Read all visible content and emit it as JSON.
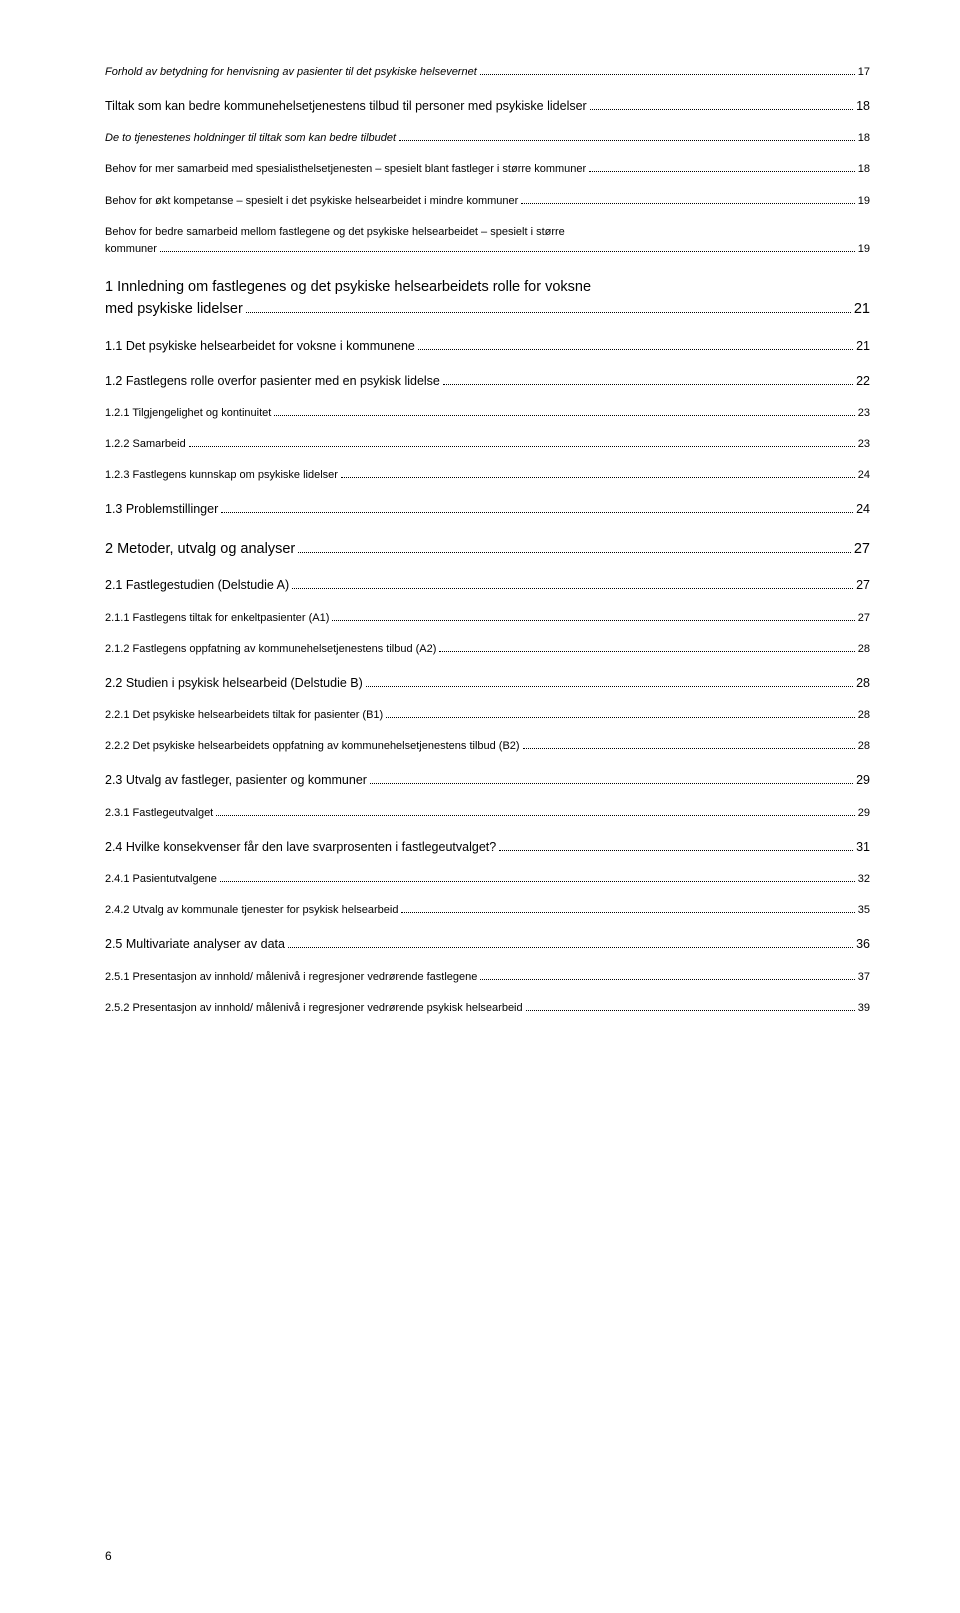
{
  "pageNumber": "6",
  "entries": [
    {
      "level": 3,
      "italic": true,
      "label": "Forhold av betydning for henvisning av pasienter til det psykiske helsevernet",
      "page": "17"
    },
    {
      "level": 1,
      "italic": false,
      "label": "Tiltak som kan bedre kommunehelsetjenestens tilbud til personer med psykiske lidelser",
      "page": "18"
    },
    {
      "level": 2,
      "italic": true,
      "label": "De to tjenestenes holdninger til tiltak som kan bedre tilbudet",
      "page": "18"
    },
    {
      "level": 3,
      "italic": false,
      "label": "Behov for mer samarbeid med spesialisthelsetjenesten – spesielt blant fastleger i større kommuner",
      "page": "18"
    },
    {
      "level": 3,
      "italic": false,
      "label": "Behov for økt kompetanse – spesielt i det psykiske helsearbeidet i mindre kommuner",
      "page": "19"
    },
    {
      "level": 3,
      "italic": false,
      "label": "Behov for bedre samarbeid mellom fastlegene og det psykiske helsearbeidet – spesielt i større kommuner",
      "page": "19",
      "multiline": true,
      "line1": "Behov for bedre samarbeid mellom fastlegene og det psykiske helsearbeidet – spesielt i større",
      "line2": "kommuner"
    },
    {
      "level": 0,
      "italic": false,
      "label": "1 Innledning om fastlegenes og det psykiske helsearbeidets rolle for voksne med psykiske lidelser",
      "page": "21",
      "multiline": true,
      "line1": "1 Innledning om fastlegenes og det psykiske helsearbeidets rolle for voksne",
      "line2": "med psykiske lidelser"
    },
    {
      "level": 1,
      "italic": false,
      "label": "1.1 Det psykiske helsearbeidet for voksne i kommunene",
      "page": "21"
    },
    {
      "level": 1,
      "italic": false,
      "label": "1.2 Fastlegens rolle overfor pasienter med en psykisk lidelse",
      "page": "22"
    },
    {
      "level": 2,
      "italic": false,
      "label": "1.2.1 Tilgjengelighet og kontinuitet",
      "page": "23"
    },
    {
      "level": 2,
      "italic": false,
      "label": "1.2.2 Samarbeid",
      "page": "23"
    },
    {
      "level": 2,
      "italic": false,
      "label": "1.2.3 Fastlegens kunnskap om psykiske lidelser",
      "page": "24"
    },
    {
      "level": 1,
      "italic": false,
      "label": "1.3 Problemstillinger",
      "page": "24"
    },
    {
      "level": 0,
      "italic": false,
      "label": "2 Metoder, utvalg og analyser",
      "page": "27"
    },
    {
      "level": 1,
      "italic": false,
      "label": "2.1 Fastlegestudien (Delstudie A)",
      "page": "27"
    },
    {
      "level": 2,
      "italic": false,
      "label": "2.1.1 Fastlegens tiltak for enkeltpasienter (A1)",
      "page": "27"
    },
    {
      "level": 2,
      "italic": false,
      "label": "2.1.2 Fastlegens oppfatning av kommunehelsetjenestens tilbud (A2)",
      "page": "28"
    },
    {
      "level": 1,
      "italic": false,
      "label": "2.2 Studien i psykisk helsearbeid (Delstudie B)",
      "page": "28"
    },
    {
      "level": 2,
      "italic": false,
      "label": "2.2.1 Det psykiske helsearbeidets tiltak for pasienter (B1)",
      "page": "28"
    },
    {
      "level": 2,
      "italic": false,
      "label": "2.2.2 Det psykiske helsearbeidets oppfatning av kommunehelsetjenestens tilbud (B2)",
      "page": "28"
    },
    {
      "level": 1,
      "italic": false,
      "label": "2.3 Utvalg av fastleger, pasienter og kommuner",
      "page": "29"
    },
    {
      "level": 2,
      "italic": false,
      "label": "2.3.1 Fastlegeutvalget",
      "page": "29"
    },
    {
      "level": 1,
      "italic": false,
      "label": "2.4 Hvilke konsekvenser får den lave svarprosenten i fastlegeutvalget?",
      "page": "31"
    },
    {
      "level": 2,
      "italic": false,
      "label": "2.4.1 Pasientutvalgene",
      "page": "32"
    },
    {
      "level": 2,
      "italic": false,
      "label": "2.4.2 Utvalg av kommunale tjenester for psykisk helsearbeid",
      "page": "35"
    },
    {
      "level": 1,
      "italic": false,
      "label": "2.5 Multivariate analyser av data",
      "page": "36"
    },
    {
      "level": 2,
      "italic": false,
      "label": "2.5.1 Presentasjon av innhold/ målenivå i regresjoner vedrørende fastlegene",
      "page": "37"
    },
    {
      "level": 2,
      "italic": false,
      "label": "2.5.2 Presentasjon av innhold/ målenivå i regresjoner vedrørende psykisk helsearbeid",
      "page": "39"
    }
  ]
}
